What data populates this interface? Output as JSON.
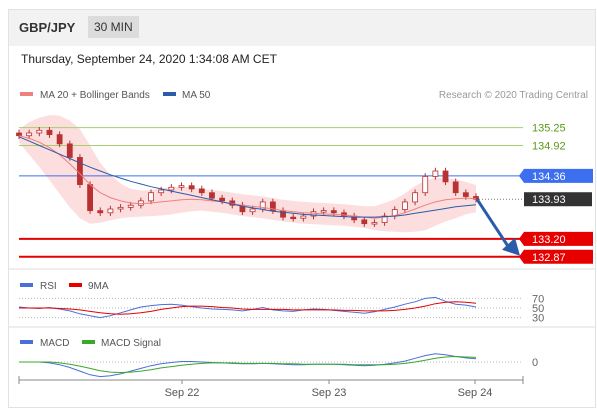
{
  "header": {
    "pair": "GBP/JPY",
    "timeframe": "30 MIN"
  },
  "timestamp": "Thursday, September 24, 2020 1:34:08 AM CET",
  "legend": {
    "ma20": "MA 20 + Bollinger Bands",
    "ma50": "MA 50",
    "credit": "Research © 2020 Trading Central"
  },
  "rsi_legend": {
    "rsi": "RSI",
    "nma": "9MA"
  },
  "macd_legend": {
    "macd": "MACD",
    "signal": "MACD Signal"
  },
  "colors": {
    "ma20": "#f08080",
    "ma50": "#2a5caa",
    "bollinger": "#fbd8d8",
    "resistance": "#a6cf6b",
    "pivot": "#3b6ff0",
    "support": "#e60000",
    "arrow": "#2a5caa",
    "candle": "#b83232",
    "current": "#333333"
  },
  "chart_data": {
    "type": "candlestick",
    "price_axis": {
      "min": 132.7,
      "max": 135.5
    },
    "levels": [
      {
        "value": "135.25",
        "kind": "resistance"
      },
      {
        "value": "134.92",
        "kind": "resistance"
      },
      {
        "value": "134.36",
        "kind": "pivot"
      },
      {
        "value": "133.93",
        "kind": "current"
      },
      {
        "value": "133.20",
        "kind": "support"
      },
      {
        "value": "132.87",
        "kind": "support"
      }
    ],
    "x_ticks": [
      "Sep 22",
      "Sep 23",
      "Sep 24"
    ],
    "closes": [
      135.1,
      135.15,
      135.2,
      135.12,
      134.95,
      134.7,
      134.2,
      133.72,
      133.68,
      133.75,
      133.78,
      133.82,
      133.9,
      134.05,
      134.1,
      134.15,
      134.18,
      134.12,
      134.05,
      133.95,
      133.9,
      133.82,
      133.7,
      133.75,
      133.88,
      133.72,
      133.6,
      133.58,
      133.62,
      133.7,
      133.72,
      133.68,
      133.62,
      133.55,
      133.48,
      133.5,
      133.62,
      133.74,
      133.88,
      134.05,
      134.35,
      134.45,
      134.25,
      134.05,
      133.98,
      133.93
    ],
    "ma20": [
      135.1,
      135.05,
      134.98,
      134.88,
      134.75,
      134.58,
      134.4,
      134.2,
      134.05,
      133.96,
      133.9,
      133.86,
      133.85,
      133.86,
      133.88,
      133.9,
      133.92,
      133.93,
      133.92,
      133.9,
      133.88,
      133.85,
      133.82,
      133.8,
      133.78,
      133.75,
      133.72,
      133.7,
      133.68,
      133.67,
      133.66,
      133.65,
      133.64,
      133.62,
      133.6,
      133.58,
      133.6,
      133.63,
      133.68,
      133.75,
      133.82,
      133.88,
      133.92,
      133.94,
      133.95,
      133.94
    ],
    "ma50": [
      135.08,
      135.0,
      134.92,
      134.84,
      134.76,
      134.68,
      134.6,
      134.52,
      134.45,
      134.38,
      134.32,
      134.26,
      134.21,
      134.16,
      134.12,
      134.08,
      134.04,
      134.0,
      133.96,
      133.92,
      133.88,
      133.84,
      133.8,
      133.77,
      133.74,
      133.71,
      133.69,
      133.67,
      133.65,
      133.64,
      133.63,
      133.62,
      133.61,
      133.6,
      133.6,
      133.6,
      133.61,
      133.62,
      133.64,
      133.67,
      133.7,
      133.73,
      133.76,
      133.79,
      133.81,
      133.83
    ],
    "band_width": [
      0.12,
      0.3,
      0.45,
      0.6,
      0.72,
      0.8,
      0.82,
      0.72,
      0.55,
      0.42,
      0.32,
      0.26,
      0.24,
      0.24,
      0.25,
      0.25,
      0.24,
      0.22,
      0.2,
      0.2,
      0.2,
      0.2,
      0.2,
      0.2,
      0.2,
      0.2,
      0.2,
      0.2,
      0.2,
      0.2,
      0.2,
      0.2,
      0.2,
      0.2,
      0.2,
      0.22,
      0.26,
      0.3,
      0.36,
      0.42,
      0.46,
      0.44,
      0.4,
      0.36,
      0.3,
      0.25
    ],
    "forecast": {
      "from": 133.93,
      "to": 132.87
    },
    "rsi": {
      "axis_labels": [
        "70",
        "50",
        "30"
      ],
      "rsi": [
        52,
        50,
        49,
        51,
        48,
        44,
        38,
        34,
        30,
        34,
        40,
        46,
        52,
        55,
        57,
        58,
        56,
        53,
        50,
        48,
        47,
        46,
        44,
        47,
        51,
        46,
        44,
        43,
        46,
        48,
        47,
        45,
        43,
        41,
        39,
        42,
        47,
        52,
        58,
        63,
        70,
        72,
        64,
        58,
        56,
        52
      ],
      "ma": [
        50,
        50,
        50,
        50,
        49,
        48,
        46,
        43,
        40,
        38,
        37,
        38,
        40,
        43,
        47,
        50,
        53,
        54,
        54,
        53,
        51,
        50,
        48,
        47,
        47,
        47,
        47,
        46,
        46,
        46,
        46,
        46,
        45,
        45,
        44,
        44,
        44,
        45,
        47,
        50,
        54,
        59,
        62,
        63,
        62,
        60
      ]
    },
    "macd": {
      "axis_label": "0",
      "macd": [
        0.0,
        0.0,
        0.0,
        -0.02,
        -0.06,
        -0.12,
        -0.2,
        -0.28,
        -0.32,
        -0.3,
        -0.26,
        -0.2,
        -0.14,
        -0.08,
        -0.04,
        -0.01,
        0.01,
        0.01,
        0.0,
        -0.01,
        -0.02,
        -0.03,
        -0.04,
        -0.04,
        -0.03,
        -0.04,
        -0.05,
        -0.06,
        -0.06,
        -0.05,
        -0.05,
        -0.05,
        -0.06,
        -0.07,
        -0.08,
        -0.07,
        -0.05,
        -0.02,
        0.02,
        0.08,
        0.14,
        0.18,
        0.16,
        0.12,
        0.09,
        0.07
      ],
      "signal": [
        0.0,
        0.0,
        0.0,
        0.0,
        -0.02,
        -0.05,
        -0.09,
        -0.14,
        -0.19,
        -0.22,
        -0.23,
        -0.22,
        -0.2,
        -0.17,
        -0.13,
        -0.1,
        -0.07,
        -0.05,
        -0.03,
        -0.02,
        -0.02,
        -0.02,
        -0.03,
        -0.03,
        -0.03,
        -0.03,
        -0.04,
        -0.04,
        -0.05,
        -0.05,
        -0.05,
        -0.05,
        -0.05,
        -0.06,
        -0.06,
        -0.06,
        -0.06,
        -0.05,
        -0.03,
        0.0,
        0.04,
        0.08,
        0.11,
        0.12,
        0.11,
        0.1
      ]
    }
  }
}
